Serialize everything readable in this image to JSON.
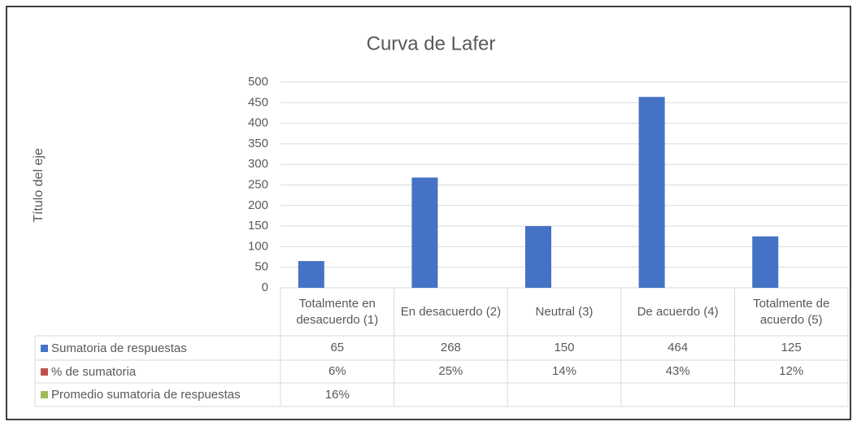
{
  "chart_data": {
    "type": "bar",
    "title": "Curva de Lafer",
    "y_axis_label": "Título del eje",
    "categories": [
      "Totalmente en desacuerdo (1)",
      "En desacuerdo (2)",
      "Neutral (3)",
      "De acuerdo (4)",
      "Totalmente de acuerdo (5)"
    ],
    "series": [
      {
        "name": "Sumatoria de respuestas",
        "color": "#4472c4",
        "values": [
          65,
          268,
          150,
          464,
          125
        ]
      },
      {
        "name": "% de sumatoria",
        "color": "#c0504d",
        "values": [
          6,
          25,
          14,
          43,
          12
        ],
        "value_labels": [
          "6%",
          "25%",
          "14%",
          "43%",
          "12%"
        ],
        "show_bars": false
      },
      {
        "name": "Promedio sumatoria de respuestas",
        "color": "#9bbb59",
        "values": [
          16,
          null,
          null,
          null,
          null
        ],
        "value_labels": [
          "16%",
          null,
          null,
          null,
          null
        ],
        "show_bars": false
      }
    ],
    "ylim": [
      0,
      500
    ],
    "yticks": [
      0,
      50,
      100,
      150,
      200,
      250,
      300,
      350,
      400,
      450,
      500
    ],
    "grid": true,
    "data_table": true
  }
}
